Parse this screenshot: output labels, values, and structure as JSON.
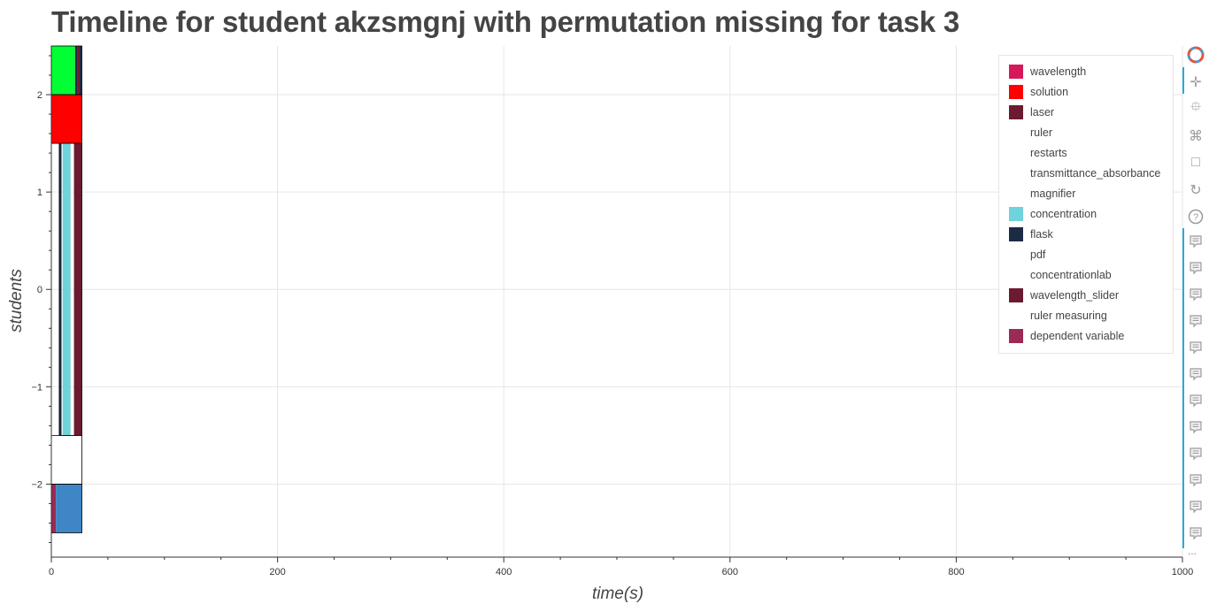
{
  "title": "Timeline for student akzsmgnj with permutation missing for task 3",
  "chart_data": {
    "type": "bar",
    "orientation": "horizontal-stacked-timeline",
    "xlabel": "time(s)",
    "ylabel": "students",
    "xlim": [
      0,
      1000
    ],
    "ylim": [
      -2.75,
      2.5
    ],
    "x_ticks": [
      0,
      200,
      400,
      600,
      800,
      1000
    ],
    "y_ticks": [
      -2,
      -1,
      0,
      1,
      2
    ],
    "grid": true,
    "legend_position": "top-right",
    "legend": [
      {
        "name": "wavelength",
        "color": "#d6185a"
      },
      {
        "name": "solution",
        "color": "#ff0000"
      },
      {
        "name": "laser",
        "color": "#6b1a2f"
      },
      {
        "name": "ruler",
        "color": "#ffffff"
      },
      {
        "name": "restarts",
        "color": "#ffffff"
      },
      {
        "name": "transmittance_absorbance",
        "color": "#ffffff"
      },
      {
        "name": "magnifier",
        "color": "#ffffff"
      },
      {
        "name": "concentration",
        "color": "#6fd3dc"
      },
      {
        "name": "flask",
        "color": "#1c2b44"
      },
      {
        "name": "pdf",
        "color": "#ffffff"
      },
      {
        "name": "concentrationlab",
        "color": "#ffffff"
      },
      {
        "name": "wavelength_slider",
        "color": "#6b1a2f"
      },
      {
        "name": "ruler measuring",
        "color": "#ffffff"
      },
      {
        "name": "dependent variable",
        "color": "#9b2a55"
      }
    ],
    "series": [
      {
        "row_bottom": 2.0,
        "row_top": 2.5,
        "start": 0,
        "end": 21,
        "color": "#00ff33"
      },
      {
        "row_bottom": 2.0,
        "row_top": 2.5,
        "start": 21,
        "end": 23,
        "color": "#1c2b44"
      },
      {
        "row_bottom": 2.0,
        "row_top": 2.5,
        "start": 23,
        "end": 25,
        "color": "#6b1a2f"
      },
      {
        "row_bottom": 2.0,
        "row_top": 2.5,
        "start": 25,
        "end": 27,
        "color": "#1c2b44"
      },
      {
        "row_bottom": 1.5,
        "row_top": 2.0,
        "start": 0,
        "end": 27,
        "color": "#ff0000"
      },
      {
        "row_bottom": -1.5,
        "row_top": 1.5,
        "start": 7,
        "end": 9,
        "color": "#1c2b44"
      },
      {
        "row_bottom": -1.5,
        "row_top": 1.5,
        "start": 10,
        "end": 17,
        "color": "#6fd3dc"
      },
      {
        "row_bottom": -1.5,
        "row_top": 1.5,
        "start": 20,
        "end": 27,
        "color": "#6b1a2f"
      },
      {
        "row_bottom": -2.0,
        "row_top": -1.5,
        "start": 0,
        "end": 27,
        "color": "#ffffff"
      },
      {
        "row_bottom": -2.5,
        "row_top": -2.0,
        "start": 0,
        "end": 4,
        "color": "#9b2a55"
      },
      {
        "row_bottom": -2.5,
        "row_top": -2.0,
        "start": 4,
        "end": 27,
        "color": "#3f86c6"
      }
    ]
  },
  "toolbar": {
    "tools": [
      "bokeh-logo-icon",
      "pan-icon",
      "box-zoom-icon",
      "wheel-zoom-icon",
      "save-icon",
      "reset-icon",
      "help-icon",
      "hover-icon",
      "hover-icon",
      "hover-icon",
      "hover-icon",
      "hover-icon",
      "hover-icon",
      "hover-icon",
      "hover-icon",
      "hover-icon",
      "hover-icon",
      "hover-icon",
      "hover-icon"
    ],
    "more": "..."
  }
}
